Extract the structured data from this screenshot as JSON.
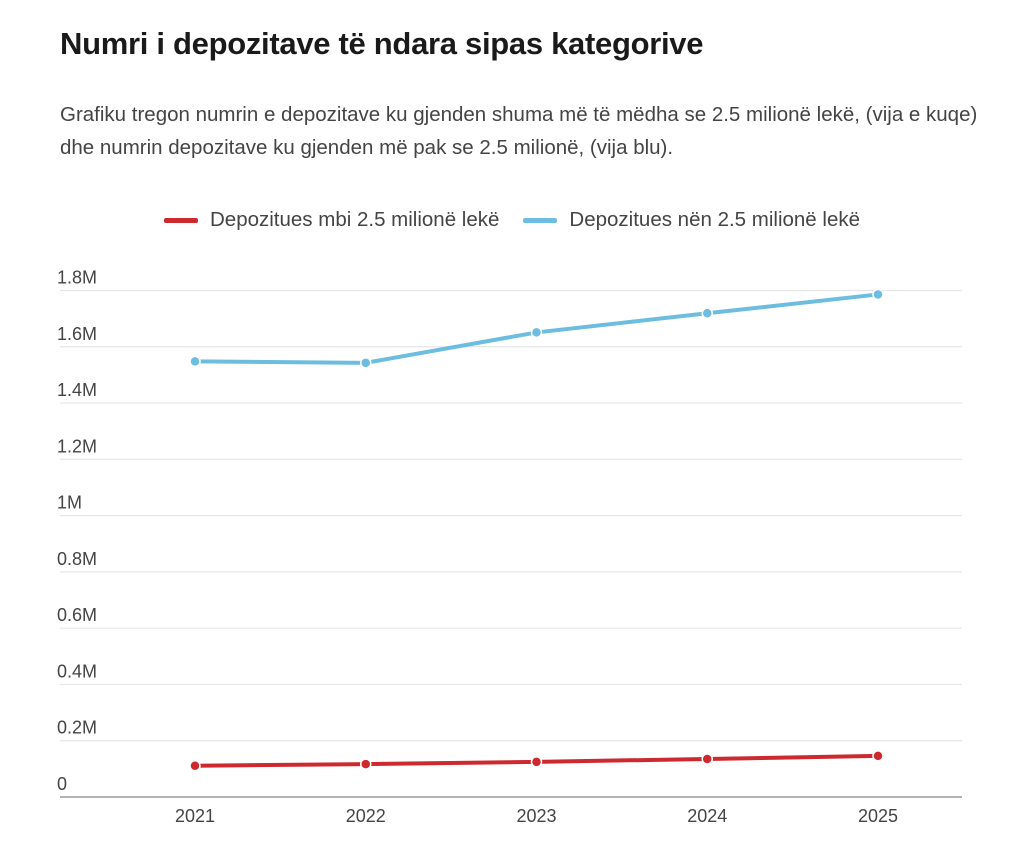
{
  "chart_data": {
    "type": "line",
    "title": "Numri i depozitave të ndara sipas kategorive",
    "subtitle": "Grafiku tregon numrin e depozitave ku gjenden shuma më të mëdha se 2.5 milionë lekë, (vija e kuqe) dhe numrin depozitave ku gjenden më pak se 2.5 milionë, (vija blu).",
    "x": [
      "2021",
      "2022",
      "2023",
      "2024",
      "2025"
    ],
    "series": [
      {
        "name": "Depozitues mbi 2.5 milionë lekë",
        "color": "#cc2a2f",
        "values": [
          0.111,
          0.117,
          0.125,
          0.135,
          0.146
        ]
      },
      {
        "name": "Depozitues nën 2.5 milionë lekë",
        "color": "#6cbde0",
        "values": [
          1.548,
          1.543,
          1.651,
          1.719,
          1.786
        ]
      }
    ],
    "ylim": [
      0,
      1.8
    ],
    "yunit": "M",
    "yticks": [
      0,
      0.2,
      0.4,
      0.6,
      0.8,
      1,
      1.2,
      1.4,
      1.6,
      1.8
    ],
    "ytick_labels": [
      "0",
      "0.2M",
      "0.4M",
      "0.6M",
      "0.8M",
      "1M",
      "1.2M",
      "1.4M",
      "1.6M",
      "1.8M"
    ],
    "grid": true,
    "legend_position": "top-center",
    "xlabel": "",
    "ylabel": ""
  }
}
